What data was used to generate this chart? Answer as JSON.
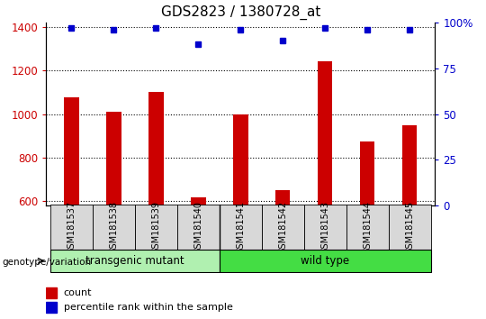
{
  "title": "GDS2823 / 1380728_at",
  "samples": [
    "GSM181537",
    "GSM181538",
    "GSM181539",
    "GSM181540",
    "GSM181541",
    "GSM181542",
    "GSM181543",
    "GSM181544",
    "GSM181545"
  ],
  "counts": [
    1075,
    1010,
    1100,
    620,
    1000,
    650,
    1240,
    875,
    950
  ],
  "percentile": [
    97,
    96,
    97,
    88,
    96,
    90,
    97,
    96,
    96
  ],
  "bar_color": "#cc0000",
  "dot_color": "#0000cc",
  "ylim_left": [
    580,
    1420
  ],
  "ylim_right": [
    0,
    100
  ],
  "yticks_left": [
    600,
    800,
    1000,
    1200,
    1400
  ],
  "yticks_right": [
    0,
    25,
    50,
    75,
    100
  ],
  "ytick_right_labels": [
    "0",
    "25",
    "50",
    "75",
    "100%"
  ],
  "groups": [
    {
      "label": "transgenic mutant",
      "start": 0,
      "end": 3,
      "color": "#b0f0b0"
    },
    {
      "label": "wild type",
      "start": 4,
      "end": 8,
      "color": "#44dd44"
    }
  ],
  "group_label": "genotype/variation",
  "legend_count": "count",
  "legend_percentile": "percentile rank within the sample",
  "plot_bg": "#ffffff",
  "sample_box_color": "#d8d8d8",
  "grid_color": "#000000",
  "title_fontsize": 11,
  "axis_label_color_left": "#cc0000",
  "axis_label_color_right": "#0000cc"
}
